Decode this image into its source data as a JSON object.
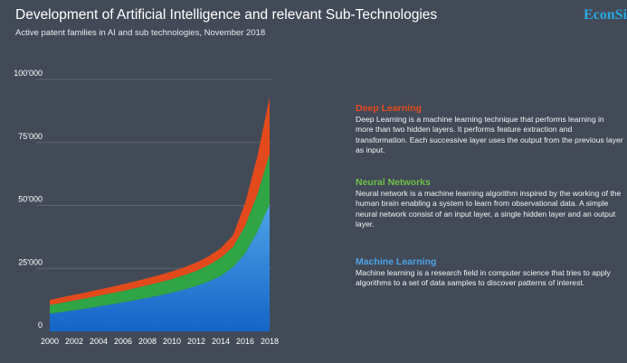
{
  "header": {
    "title": "Development of Artificial Intelligence and relevant Sub-Technologies",
    "subtitle": "Active patent families in AI and sub technologies, November 2018",
    "brand": "EconSi"
  },
  "legend": [
    {
      "name": "Deep Learning",
      "color": "#e34a1b",
      "description": "Deep Learning is a machine learning technique that performs learning in more than two hidden layers. It performs feature extraction and transformation. Each successive layer uses the output from the previous layer as input."
    },
    {
      "name": "Neural Networks",
      "color": "#6cc04a",
      "description": "Neural network is a machine learning algorithm inspired by the working of the human brain enabling a system to learn from observational data. A simple neural network consist of an input layer, a single hidden layer and an output layer."
    },
    {
      "name": "Machine Learning",
      "color": "#4da3e6",
      "description": "Machine learning is a research field in computer science that tries to apply algorithms to a set of data samples to discover patterns of interest."
    }
  ],
  "chart_data": {
    "type": "area",
    "stacked": true,
    "x": [
      2000,
      2001,
      2002,
      2003,
      2004,
      2005,
      2006,
      2007,
      2008,
      2009,
      2010,
      2011,
      2012,
      2013,
      2014,
      2015,
      2016,
      2017,
      2018
    ],
    "xticks": [
      "2000",
      "2002",
      "2004",
      "2006",
      "2008",
      "2010",
      "2012",
      "2014",
      "2016",
      "2018"
    ],
    "yticks": [
      "0",
      "25'000",
      "50'000",
      "75'000",
      "100'000"
    ],
    "ylim": [
      0,
      100000
    ],
    "grid": true,
    "series": [
      {
        "name": "Machine Learning",
        "color": "#4da3e6",
        "values": [
          7000,
          7700,
          8400,
          9100,
          9900,
          10700,
          11500,
          12400,
          13300,
          14300,
          15400,
          16600,
          18000,
          19800,
          22000,
          25500,
          31000,
          39500,
          50500
        ]
      },
      {
        "name": "Neural Networks",
        "color": "#2fa546",
        "values": [
          3500,
          3700,
          3900,
          4100,
          4300,
          4400,
          4600,
          4800,
          5000,
          5200,
          5400,
          5700,
          6000,
          6500,
          7200,
          8000,
          11000,
          15000,
          20000
        ]
      },
      {
        "name": "Deep Learning",
        "color": "#e34a1b",
        "values": [
          2000,
          2100,
          2200,
          2300,
          2400,
          2500,
          2600,
          2700,
          2800,
          2900,
          3000,
          3100,
          3300,
          3500,
          3800,
          4600,
          9000,
          15000,
          22500
        ]
      }
    ]
  }
}
